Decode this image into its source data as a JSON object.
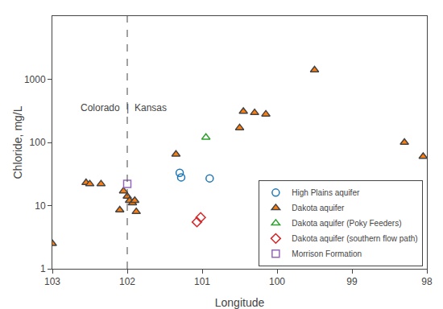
{
  "chart_data": {
    "type": "scatter",
    "xlabel": "Longitude",
    "ylabel": "Chloride, mg/L",
    "log": "y",
    "grid": false,
    "legend": "lower right",
    "xlim": [
      103,
      98
    ],
    "ylim": [
      1,
      10000
    ],
    "xticks": [
      103,
      102,
      101,
      100,
      99,
      98
    ],
    "yticks": [
      1,
      10,
      100,
      1000
    ],
    "vlines": [
      {
        "x": 102,
        "line_style": "dashed"
      }
    ],
    "annotations": [
      {
        "text": "Colorado",
        "x": 102.08,
        "y": 350
      },
      {
        "text": "|",
        "x": 102.0,
        "y": 350
      },
      {
        "text": "Kansas",
        "x": 101.92,
        "y": 350
      }
    ],
    "series": [
      {
        "name": "High Plains aquifer",
        "marker": "circle-open",
        "x": [
          101.3,
          101.28,
          100.9
        ],
        "values": [
          33,
          28,
          27
        ]
      },
      {
        "name": "Dakota aquifer",
        "marker": "triangle-up",
        "x": [
          103.0,
          102.55,
          102.5,
          102.35,
          102.1,
          102.05,
          102.0,
          101.97,
          101.93,
          101.9,
          101.88,
          101.35,
          100.5,
          100.45,
          100.3,
          100.15,
          99.5,
          98.3,
          98.05
        ],
        "values": [
          2.5,
          23,
          22,
          22,
          8.5,
          17,
          14,
          12,
          11,
          12,
          8,
          65,
          170,
          310,
          295,
          280,
          1400,
          100,
          60
        ]
      },
      {
        "name": "Dakota aquifer (Poky Feeders)",
        "marker": "triangle-up-open",
        "x": [
          100.95
        ],
        "values": [
          120
        ]
      },
      {
        "name": "Dakota aquifer (southern flow path)",
        "marker": "diamond-open",
        "x": [
          101.02,
          101.07
        ],
        "values": [
          6.5,
          5.5
        ]
      },
      {
        "name": "Morrison Formation",
        "marker": "square-open",
        "x": [
          102.0
        ],
        "values": [
          22
        ]
      }
    ]
  }
}
